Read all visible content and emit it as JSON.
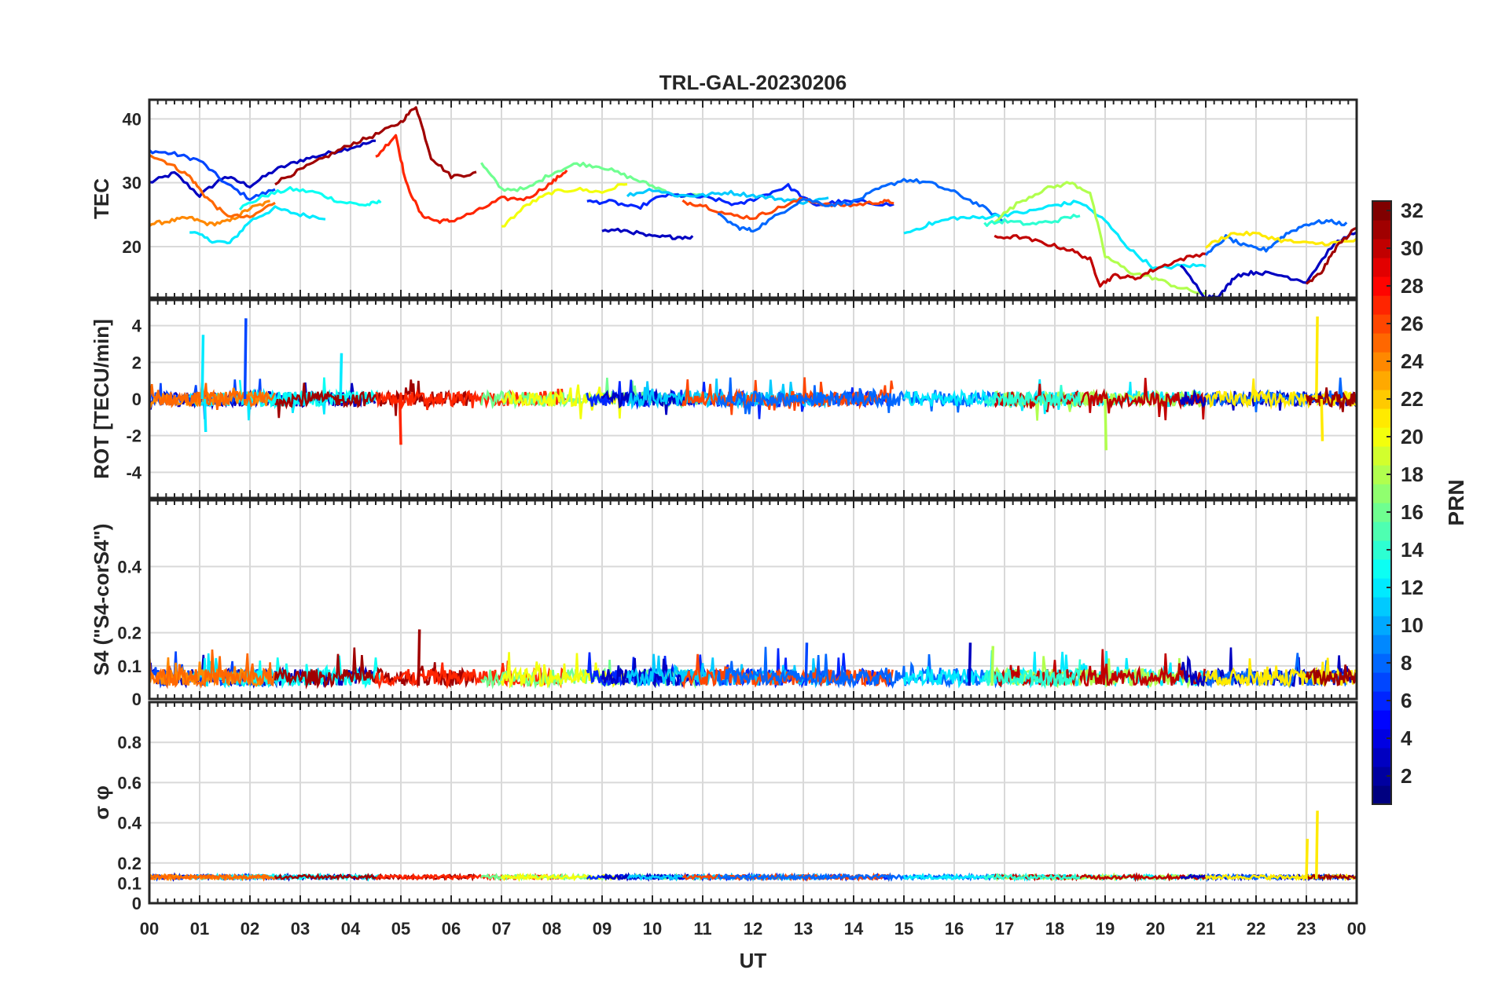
{
  "title": "TRL-GAL-20230206",
  "xlabel": "UT",
  "x_ticks": [
    "00",
    "01",
    "02",
    "03",
    "04",
    "05",
    "06",
    "07",
    "08",
    "09",
    "10",
    "11",
    "12",
    "13",
    "14",
    "15",
    "16",
    "17",
    "18",
    "19",
    "20",
    "21",
    "22",
    "23",
    "00"
  ],
  "colorbar": {
    "label": "PRN",
    "range": [
      1,
      32
    ],
    "ticks": [
      "2",
      "4",
      "6",
      "8",
      "10",
      "12",
      "14",
      "16",
      "18",
      "20",
      "22",
      "24",
      "26",
      "28",
      "30",
      "32"
    ],
    "colormap": "jet"
  },
  "chart_data": [
    {
      "type": "line",
      "panel": "TEC",
      "ylabel": "TEC",
      "ylim": [
        12,
        43
      ],
      "yticks": [
        "20",
        "30",
        "40"
      ],
      "xlim": [
        0,
        24
      ],
      "series": [
        {
          "prn": 3,
          "x": [
            0.0,
            0.5,
            1.0,
            1.5,
            2.0,
            2.5,
            3.0,
            3.5,
            4.0,
            4.5
          ],
          "y": [
            30,
            31.5,
            28,
            31,
            29.5,
            32,
            33.5,
            34.5,
            35.5,
            36.5
          ]
        },
        {
          "prn": 7,
          "x": [
            0.0,
            0.5,
            1.0,
            1.5,
            2.0,
            2.5
          ],
          "y": [
            35,
            34.5,
            33.5,
            30,
            27.5,
            29
          ]
        },
        {
          "prn": 12,
          "x": [
            0.8,
            1.2,
            1.6,
            2.0,
            2.5,
            3.0,
            3.5
          ],
          "y": [
            22.5,
            21,
            20.5,
            24,
            26,
            25,
            24.5
          ]
        },
        {
          "prn": 13,
          "x": [
            1.8,
            2.3,
            2.8,
            3.3,
            3.8,
            4.3,
            4.6
          ],
          "y": [
            26,
            28,
            29,
            28.5,
            27,
            26.5,
            27
          ]
        },
        {
          "prn": 24,
          "x": [
            0.0,
            0.4,
            0.8,
            1.2,
            1.6,
            2.0,
            2.4
          ],
          "y": [
            23.5,
            24,
            24.5,
            23.5,
            24,
            26,
            27
          ]
        },
        {
          "prn": 25,
          "x": [
            0.0,
            0.4,
            0.8,
            1.1,
            1.5,
            2.0,
            2.5
          ],
          "y": [
            34.5,
            33,
            31,
            28,
            25,
            24.5,
            27
          ]
        },
        {
          "prn": 31,
          "x": [
            2.5,
            3.0,
            3.5,
            4.0,
            4.5,
            5.0,
            5.3,
            5.6,
            6.0,
            6.5
          ],
          "y": [
            30,
            32,
            34,
            36,
            37.5,
            39.5,
            42,
            34,
            31,
            31.5
          ]
        },
        {
          "prn": 27,
          "x": [
            4.5,
            4.9,
            5.1,
            5.4,
            5.7,
            6.0,
            6.5,
            7.0,
            7.5,
            8.0,
            8.3
          ],
          "y": [
            34,
            37.5,
            30,
            25,
            24,
            24,
            25.5,
            27.5,
            27.5,
            30,
            32
          ]
        },
        {
          "prn": 16,
          "x": [
            6.6,
            7.0,
            7.5,
            8.0,
            8.5,
            9.0,
            9.5,
            10.0,
            10.5,
            11.0
          ],
          "y": [
            33,
            29,
            29,
            31.5,
            33,
            32.5,
            31,
            29.5,
            28,
            28
          ]
        },
        {
          "prn": 20,
          "x": [
            7.0,
            7.5,
            8.0,
            8.5,
            9.0,
            9.5
          ],
          "y": [
            23,
            26.5,
            28.5,
            29,
            28.5,
            30
          ]
        },
        {
          "prn": 6,
          "x": [
            8.7,
            9.2,
            9.7,
            10.2,
            10.7,
            11.2,
            11.7,
            12.2,
            12.7,
            13.2,
            13.7,
            14.2,
            14.8
          ],
          "y": [
            27,
            27,
            26,
            28,
            28,
            27.5,
            26.5,
            28,
            29.5,
            26.5,
            27,
            27,
            26.5
          ]
        },
        {
          "prn": 3,
          "x": [
            9.0,
            9.5,
            10.0,
            10.4,
            10.8
          ],
          "y": [
            22.5,
            22.5,
            21.5,
            21.5,
            21.5
          ]
        },
        {
          "prn": 11,
          "x": [
            9.5,
            10.0,
            10.5,
            11.0,
            11.5,
            12.0,
            12.5,
            13.0,
            13.5
          ],
          "y": [
            28,
            29,
            28,
            28,
            28.5,
            28,
            27.5,
            27,
            27.5
          ]
        },
        {
          "prn": 26,
          "x": [
            10.6,
            11.0,
            11.5,
            12.0,
            12.5,
            13.0,
            13.5,
            14.0,
            14.5,
            14.8
          ],
          "y": [
            27,
            26.5,
            25,
            24.5,
            26,
            27.5,
            26.5,
            26.5,
            27,
            27
          ]
        },
        {
          "prn": 8,
          "x": [
            11.3,
            11.7,
            12.0,
            12.5,
            13.0,
            13.5,
            14.0,
            14.5,
            15.0,
            15.5,
            16.0,
            16.5,
            17.0
          ],
          "y": [
            25,
            23,
            22.5,
            25,
            27.5,
            26.5,
            27,
            29,
            30.5,
            30,
            28.5,
            26.5,
            24
          ]
        },
        {
          "prn": 12,
          "x": [
            15.0,
            15.5,
            16.0,
            16.5,
            17.0,
            17.5,
            18.0,
            18.5,
            19.0,
            19.5,
            20.0,
            20.5,
            21.0
          ],
          "y": [
            22,
            23.5,
            24.5,
            24.5,
            25,
            25.5,
            26.5,
            27,
            24,
            19.5,
            16.5,
            17,
            17
          ]
        },
        {
          "prn": 18,
          "x": [
            16.8,
            17.3,
            17.8,
            18.3,
            18.7,
            19.0,
            19.5,
            20.0,
            20.5,
            21.0
          ],
          "y": [
            24,
            27,
            29,
            30,
            28.5,
            18.5,
            16,
            15,
            13.5,
            12.5
          ]
        },
        {
          "prn": 30,
          "x": [
            16.8,
            17.3,
            17.8,
            18.3,
            18.7,
            18.9,
            19.2,
            19.6,
            20.0,
            20.5,
            21.0
          ],
          "y": [
            21.5,
            21.5,
            20.5,
            19.5,
            18,
            14,
            15.5,
            15,
            16.5,
            18,
            19
          ]
        },
        {
          "prn": 14,
          "x": [
            16.6,
            17.0,
            17.5,
            18.0,
            18.5
          ],
          "y": [
            23.5,
            24,
            23.5,
            24,
            25
          ]
        },
        {
          "prn": 3,
          "x": [
            20.5,
            21.0,
            21.3,
            21.6,
            22.0,
            22.5,
            23.0,
            23.5,
            24.0
          ],
          "y": [
            17,
            12,
            12.5,
            15.5,
            16,
            15.5,
            14.5,
            20,
            22.5
          ]
        },
        {
          "prn": 8,
          "x": [
            21.0,
            21.4,
            21.8,
            22.2,
            22.6,
            23.0,
            23.4,
            23.8
          ],
          "y": [
            18.5,
            21.5,
            20,
            19.5,
            22,
            23.5,
            24,
            23.5
          ]
        },
        {
          "prn": 21,
          "x": [
            21.0,
            21.5,
            22.0,
            22.5,
            23.0,
            23.5,
            24.0
          ],
          "y": [
            20,
            22,
            22,
            21,
            20.5,
            20.5,
            21
          ]
        },
        {
          "prn": 31,
          "x": [
            23.0,
            23.3,
            23.6,
            24.0
          ],
          "y": [
            14,
            16,
            20,
            23
          ]
        }
      ]
    },
    {
      "type": "line",
      "panel": "ROT",
      "ylabel": "ROT [TECU/min]",
      "ylim": [
        -5.4,
        5.4
      ],
      "yticks": [
        "-4",
        "-2",
        "0",
        "2",
        "4"
      ],
      "xlim": [
        0,
        24
      ],
      "spikes": [
        {
          "prn": 12,
          "x": 1.05,
          "y": 3.5
        },
        {
          "prn": 12,
          "x": 1.1,
          "y": -1.8
        },
        {
          "prn": 7,
          "x": 1.9,
          "y": 4.4
        },
        {
          "prn": 12,
          "x": 3.8,
          "y": 2.5
        },
        {
          "prn": 27,
          "x": 4.98,
          "y": -2.5
        },
        {
          "prn": 18,
          "x": 19.0,
          "y": -2.8
        },
        {
          "prn": 21,
          "x": 23.2,
          "y": 4.5
        },
        {
          "prn": 21,
          "x": 23.3,
          "y": -2.3
        }
      ]
    },
    {
      "type": "line",
      "panel": "S4",
      "ylabel": "S4 (\"S4-corS4\")",
      "ylim": [
        0,
        0.6
      ],
      "yticks": [
        "0",
        "0.1",
        "0.2",
        "0.4"
      ],
      "xlim": [
        0,
        24
      ],
      "peaks": [
        {
          "prn": 31,
          "x": 5.35,
          "y": 0.21
        },
        {
          "prn": 7,
          "x": 13.05,
          "y": 0.17
        },
        {
          "prn": 3,
          "x": 16.3,
          "y": 0.17
        },
        {
          "prn": 18,
          "x": 16.75,
          "y": 0.16
        }
      ]
    },
    {
      "type": "line",
      "panel": "sigma_phi",
      "ylabel": "σ φ",
      "ylim": [
        0,
        1.0
      ],
      "yticks": [
        "0",
        "0.1",
        "0.2",
        "0.4",
        "0.6",
        "0.8"
      ],
      "xlim": [
        0,
        24
      ],
      "peaks": [
        {
          "prn": 21,
          "x": 23.0,
          "y": 0.32
        },
        {
          "prn": 21,
          "x": 23.2,
          "y": 0.46
        }
      ]
    }
  ]
}
